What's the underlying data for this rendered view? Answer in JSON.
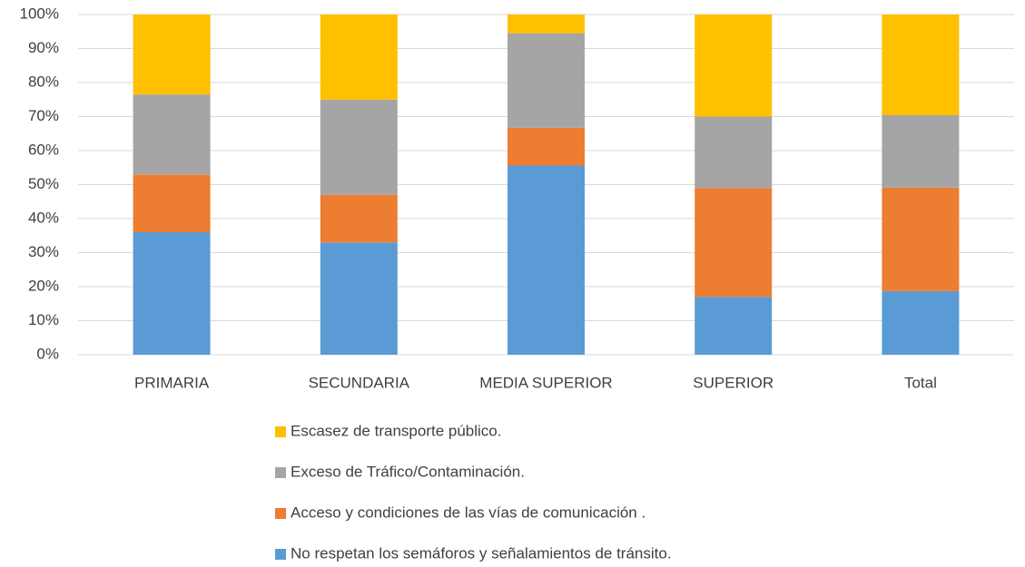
{
  "chart_data": {
    "type": "stacked_bar",
    "categories": [
      "PRIMARIA",
      "SECUNDARIA",
      "MEDIA SUPERIOR",
      "SUPERIOR",
      "Total"
    ],
    "series": [
      {
        "name": "No respetan los semáforos y señalamientos de tránsito.",
        "color": "#5b9bd5",
        "values": [
          36,
          33,
          55.6,
          17,
          18.7
        ]
      },
      {
        "name": "Acceso y condiciones de las vías de comunicación .",
        "color": "#ed7d31",
        "values": [
          17,
          14,
          11.1,
          32,
          30.4
        ]
      },
      {
        "name": "Exceso de Tráfico/Contaminación.",
        "color": "#a5a5a5",
        "values": [
          23.5,
          28,
          27.8,
          21,
          21.3
        ]
      },
      {
        "name": "Escasez de transporte público.",
        "color": "#ffc000",
        "values": [
          23.5,
          25,
          5.5,
          30,
          29.6
        ]
      }
    ],
    "ylim": [
      0,
      100
    ],
    "yticks": [
      {
        "value": 0,
        "label": "0%"
      },
      {
        "value": 10,
        "label": "10%"
      },
      {
        "value": 20,
        "label": "20%"
      },
      {
        "value": 30,
        "label": "30%"
      },
      {
        "value": 40,
        "label": "40%"
      },
      {
        "value": 50,
        "label": "50%"
      },
      {
        "value": 60,
        "label": "60%"
      },
      {
        "value": 70,
        "label": "70%"
      },
      {
        "value": 80,
        "label": "80%"
      },
      {
        "value": 90,
        "label": "90%"
      },
      {
        "value": 100,
        "label": "100%"
      }
    ],
    "grid": true,
    "legend": "bottom"
  }
}
